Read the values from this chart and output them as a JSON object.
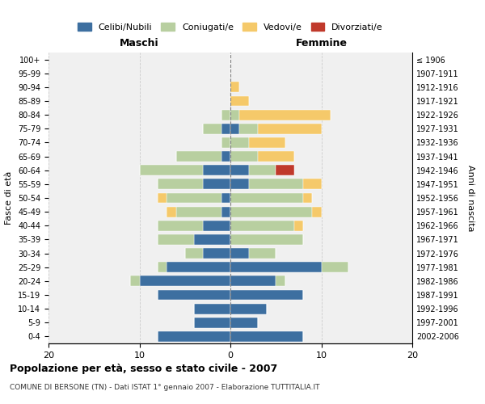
{
  "age_groups": [
    "0-4",
    "5-9",
    "10-14",
    "15-19",
    "20-24",
    "25-29",
    "30-34",
    "35-39",
    "40-44",
    "45-49",
    "50-54",
    "55-59",
    "60-64",
    "65-69",
    "70-74",
    "75-79",
    "80-84",
    "85-89",
    "90-94",
    "95-99",
    "100+"
  ],
  "birth_years": [
    "2002-2006",
    "1997-2001",
    "1992-1996",
    "1987-1991",
    "1982-1986",
    "1977-1981",
    "1972-1976",
    "1967-1971",
    "1962-1966",
    "1957-1961",
    "1952-1956",
    "1947-1951",
    "1942-1946",
    "1937-1941",
    "1932-1936",
    "1927-1931",
    "1922-1926",
    "1917-1921",
    "1912-1916",
    "1907-1911",
    "≤ 1906"
  ],
  "males": {
    "celibi": [
      8,
      4,
      4,
      8,
      10,
      7,
      3,
      4,
      3,
      1,
      1,
      3,
      3,
      1,
      0,
      1,
      0,
      0,
      0,
      0,
      0
    ],
    "coniugati": [
      0,
      0,
      0,
      0,
      1,
      1,
      2,
      4,
      5,
      5,
      6,
      5,
      7,
      5,
      1,
      2,
      1,
      0,
      0,
      0,
      0
    ],
    "vedovi": [
      0,
      0,
      0,
      0,
      0,
      0,
      0,
      0,
      0,
      1,
      1,
      0,
      0,
      0,
      0,
      0,
      0,
      0,
      0,
      0,
      0
    ],
    "divorziati": [
      0,
      0,
      0,
      0,
      0,
      0,
      0,
      0,
      0,
      0,
      0,
      0,
      0,
      0,
      0,
      0,
      0,
      0,
      0,
      0,
      0
    ]
  },
  "females": {
    "nubili": [
      8,
      3,
      4,
      8,
      5,
      10,
      2,
      0,
      0,
      0,
      0,
      2,
      2,
      0,
      0,
      1,
      0,
      0,
      0,
      0,
      0
    ],
    "coniugate": [
      0,
      0,
      0,
      0,
      1,
      3,
      3,
      8,
      7,
      9,
      8,
      6,
      3,
      3,
      2,
      2,
      1,
      0,
      0,
      0,
      0
    ],
    "vedove": [
      0,
      0,
      0,
      0,
      0,
      0,
      0,
      0,
      1,
      1,
      1,
      2,
      0,
      4,
      4,
      7,
      10,
      2,
      1,
      0,
      0
    ],
    "divorziate": [
      0,
      0,
      0,
      0,
      0,
      0,
      0,
      0,
      0,
      0,
      0,
      0,
      2,
      0,
      0,
      0,
      0,
      0,
      0,
      0,
      0
    ]
  },
  "color_celibi": "#3d6fa0",
  "color_coniugati": "#b8cfa0",
  "color_vedovi": "#f5c96a",
  "color_divorziati": "#c0392b",
  "title": "Popolazione per età, sesso e stato civile - 2007",
  "subtitle": "COMUNE DI BERSONE (TN) - Dati ISTAT 1° gennaio 2007 - Elaborazione TUTTITALIA.IT",
  "xlabel_left": "Maschi",
  "xlabel_right": "Femmine",
  "ylabel_left": "Fasce di età",
  "ylabel_right": "Anni di nascita",
  "xlim": 20,
  "bg_color": "#f0f0f0",
  "grid_color": "#cccccc"
}
